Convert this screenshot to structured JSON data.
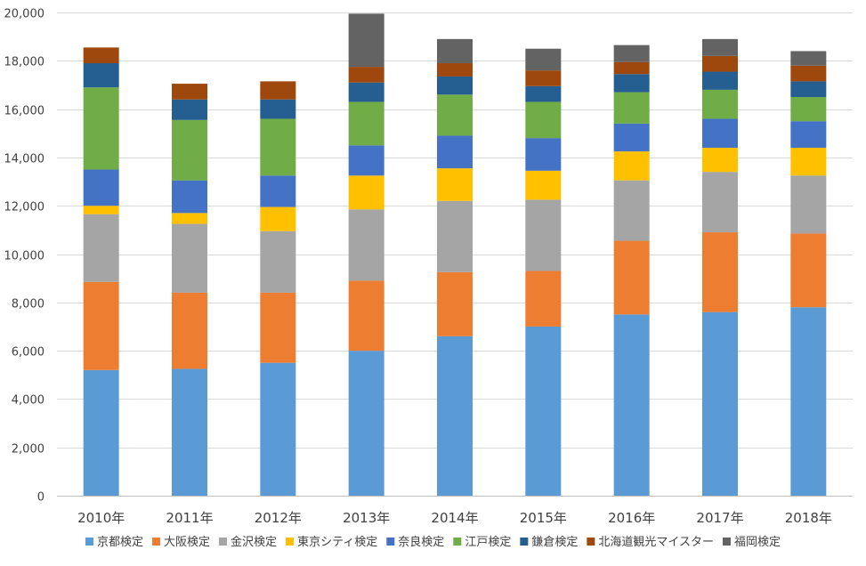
{
  "chart_data": {
    "type": "bar",
    "stacked": true,
    "categories": [
      "2010年",
      "2011年",
      "2012年",
      "2013年",
      "2014年",
      "2015年",
      "2016年",
      "2017年",
      "2018年"
    ],
    "ylim": [
      0,
      20000
    ],
    "yticks": [
      "0",
      "2,000",
      "4,000",
      "6,000",
      "8,000",
      "10,000",
      "12,000",
      "14,000",
      "16,000",
      "18,000",
      "20,000"
    ],
    "ytick_values": [
      0,
      2000,
      4000,
      6000,
      8000,
      10000,
      12000,
      14000,
      16000,
      18000,
      20000
    ],
    "grid": true,
    "legend_position": "bottom",
    "series": [
      {
        "name": "京都検定",
        "color": "#5B9BD5",
        "values": [
          5200,
          5250,
          5500,
          6000,
          6600,
          7000,
          7500,
          7600,
          7800
        ]
      },
      {
        "name": "大阪検定",
        "color": "#ED7D31",
        "values": [
          3650,
          3150,
          2900,
          2900,
          2650,
          2300,
          3050,
          3300,
          3050
        ]
      },
      {
        "name": "金沢検定",
        "color": "#A5A5A5",
        "values": [
          2800,
          2850,
          2550,
          2950,
          2950,
          2950,
          2500,
          2500,
          2400
        ]
      },
      {
        "name": "東京シティ検定",
        "color": "#FFC000",
        "values": [
          350,
          450,
          1000,
          1400,
          1350,
          1200,
          1200,
          1000,
          1150
        ]
      },
      {
        "name": "奈良検定",
        "color": "#4472C4",
        "values": [
          1500,
          1350,
          1300,
          1250,
          1350,
          1350,
          1150,
          1200,
          1100
        ]
      },
      {
        "name": "江戸検定",
        "color": "#70AD47",
        "values": [
          3400,
          2500,
          2350,
          1800,
          1700,
          1500,
          1300,
          1200,
          1000
        ]
      },
      {
        "name": "鎌倉検定",
        "color": "#255E91",
        "values": [
          1000,
          850,
          800,
          800,
          750,
          650,
          750,
          750,
          650
        ]
      },
      {
        "name": "北海道観光マイスター",
        "color": "#9E480E",
        "values": [
          650,
          650,
          750,
          650,
          550,
          650,
          500,
          650,
          650
        ]
      },
      {
        "name": "福岡検定",
        "color": "#636363",
        "values": [
          0,
          0,
          0,
          2200,
          1000,
          900,
          700,
          700,
          600
        ]
      }
    ]
  }
}
